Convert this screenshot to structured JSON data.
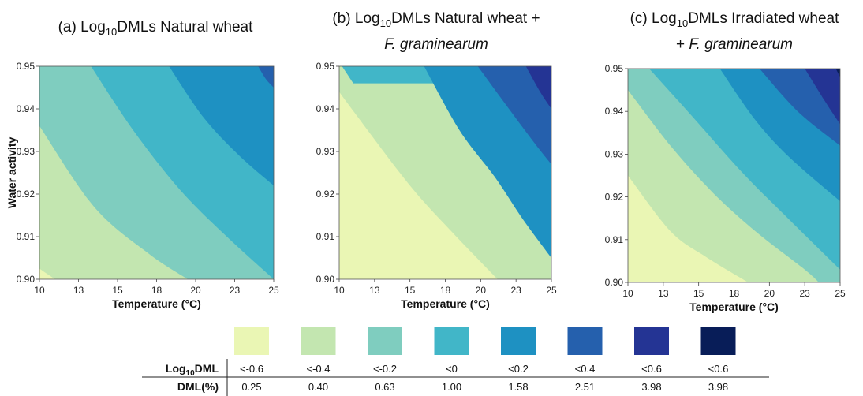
{
  "chart_data": [
    {
      "type": "heatmap",
      "panel": "a",
      "title": "(a) Log₁₀DMLs Natural wheat",
      "title_lines": [
        "(a) Log",
        "10",
        "DMLs Natural wheat"
      ],
      "xlabel": "Temperature (°C)",
      "ylabel": "Water activity",
      "xticks": [
        "10",
        "13",
        "15",
        "18",
        "20",
        "23",
        "25"
      ],
      "yticks": [
        "0.90",
        "0.91",
        "0.92",
        "0.93",
        "0.94",
        "0.95"
      ],
      "xlim": [
        10,
        25
      ],
      "ylim": [
        0.9,
        0.95
      ],
      "contour_bands": [
        {
          "level": "<-0.4",
          "boundary": [
            [
              10,
              0.9025
            ],
            [
              11,
              0.9
            ]
          ]
        },
        {
          "level": "<-0.2",
          "boundary": [
            [
              10,
              0.936
            ],
            [
              13.5,
              0.917
            ],
            [
              17,
              0.906
            ],
            [
              19.5,
              0.9
            ]
          ]
        },
        {
          "level": "<0",
          "boundary": [
            [
              13.3,
              0.95
            ],
            [
              16,
              0.935
            ],
            [
              19,
              0.921
            ],
            [
              22,
              0.91
            ],
            [
              25,
              0.9
            ]
          ]
        },
        {
          "level": "<0.2",
          "boundary": [
            [
              18.3,
              0.95
            ],
            [
              20.5,
              0.938
            ],
            [
              22.8,
              0.929
            ],
            [
              25,
              0.922
            ]
          ]
        },
        {
          "level": "<0.4",
          "boundary": [
            [
              24,
              0.95
            ],
            [
              24.5,
              0.947
            ],
            [
              25,
              0.945
            ]
          ]
        }
      ]
    },
    {
      "type": "heatmap",
      "panel": "b",
      "title": "(b) Log₁₀DMLs Natural wheat + F. graminearum",
      "title_lines": [
        "(b) Log",
        "10",
        "DMLs Natural wheat +",
        "F. graminearum"
      ],
      "xlabel": "Temperature (°C)",
      "ylabel": "",
      "xticks": [
        "10",
        "13",
        "15",
        "18",
        "20",
        "23",
        "25"
      ],
      "yticks": [
        "0.90",
        "0.91",
        "0.92",
        "0.93",
        "0.94",
        "0.95"
      ],
      "xlim": [
        10,
        25
      ],
      "ylim": [
        0.9,
        0.95
      ],
      "contour_bands": [
        {
          "level": "<-0.6",
          "boundary": [
            [
              10,
              0.9175
            ],
            [
              12.5,
              0.906
            ],
            [
              14.3,
              0.9
            ]
          ]
        },
        {
          "level": "<-0.4",
          "boundary": [
            [
              10,
              0.944
            ],
            [
              11,
              0.9395
            ],
            [
              15,
              0.922
            ],
            [
              18,
              0.911
            ],
            [
              21.2,
              0.9
            ]
          ]
        },
        {
          "level": "<0",
          "boundary": [
            [
              10.2,
              0.95
            ],
            [
              11,
              0.946
            ]
          ]
        },
        {
          "level": "<0.2",
          "boundary": [
            [
              16,
              0.95
            ],
            [
              18.5,
              0.935
            ],
            [
              21,
              0.924
            ],
            [
              23,
              0.914
            ],
            [
              25,
              0.905
            ]
          ]
        },
        {
          "level": "<0.4",
          "boundary": [
            [
              19.8,
              0.95
            ],
            [
              22,
              0.94
            ],
            [
              23.8,
              0.932
            ],
            [
              25,
              0.927
            ]
          ]
        },
        {
          "level": "<0.6",
          "boundary": [
            [
              23.2,
              0.95
            ],
            [
              24.2,
              0.944
            ],
            [
              25,
              0.94
            ]
          ]
        }
      ]
    },
    {
      "type": "heatmap",
      "panel": "c",
      "title": "(c) Log₁₀DMLs Irradiated wheat + F. graminearum",
      "title_lines": [
        "(c) Log",
        "10",
        "DMLs Irradiated  wheat",
        "+ F. graminearum"
      ],
      "xlabel": "Temperature (°C)",
      "ylabel": "",
      "xticks": [
        "10",
        "13",
        "15",
        "18",
        "20",
        "23",
        "25"
      ],
      "yticks": [
        "0.90",
        "0.91",
        "0.92",
        "0.93",
        "0.94",
        "0.95"
      ],
      "xlim": [
        10,
        25
      ],
      "ylim": [
        0.9,
        0.95
      ],
      "contour_bands": [
        {
          "level": "<-0.4",
          "boundary": [
            [
              10,
              0.925
            ],
            [
              13,
              0.912
            ],
            [
              15.5,
              0.906
            ],
            [
              18.5,
              0.9
            ]
          ]
        },
        {
          "level": "<-0.2",
          "boundary": [
            [
              10,
              0.945
            ],
            [
              13,
              0.932
            ],
            [
              16,
              0.921
            ],
            [
              19,
              0.912
            ],
            [
              22.5,
              0.903
            ],
            [
              23.5,
              0.9
            ]
          ]
        },
        {
          "level": "<0",
          "boundary": [
            [
              11.5,
              0.95
            ],
            [
              14.5,
              0.939
            ],
            [
              18,
              0.926
            ],
            [
              21,
              0.916
            ],
            [
              25,
              0.903
            ]
          ]
        },
        {
          "level": "<0.2",
          "boundary": [
            [
              16.5,
              0.95
            ],
            [
              19,
              0.938
            ],
            [
              21.5,
              0.929
            ],
            [
              25,
              0.919
            ]
          ]
        },
        {
          "level": "<0.4",
          "boundary": [
            [
              19.3,
              0.95
            ],
            [
              22,
              0.94
            ],
            [
              25,
              0.932
            ]
          ]
        },
        {
          "level": "<0.6",
          "boundary": [
            [
              22.5,
              0.95
            ],
            [
              24,
              0.942
            ],
            [
              25,
              0.937
            ]
          ]
        },
        {
          "level": "<0.6",
          "boundary": [
            [
              24.7,
              0.95
            ],
            [
              25,
              0.948
            ]
          ]
        }
      ]
    }
  ],
  "legend": {
    "row1_label_base": "Log",
    "row1_label_sub": "10",
    "row1_label_tail": "DML",
    "row2_label": "DML(%)",
    "entries": [
      {
        "color": "#eaf6b4",
        "log": "<-0.6",
        "dml": "0.25"
      },
      {
        "color": "#c3e6b0",
        "log": "<-0.4",
        "dml": "0.40"
      },
      {
        "color": "#7fcdbf",
        "log": "<-0.2",
        "dml": "0.63"
      },
      {
        "color": "#41b6c8",
        "log": "<0",
        "dml": "1.00"
      },
      {
        "color": "#1e91c2",
        "log": "<0.2",
        "dml": "1.58"
      },
      {
        "color": "#2560ad",
        "log": "<0.4",
        "dml": "2.51"
      },
      {
        "color": "#243494",
        "log": "<0.6",
        "dml": "3.98"
      },
      {
        "color": "#081d58",
        "log": "<0.6",
        "dml": "3.98"
      }
    ]
  }
}
